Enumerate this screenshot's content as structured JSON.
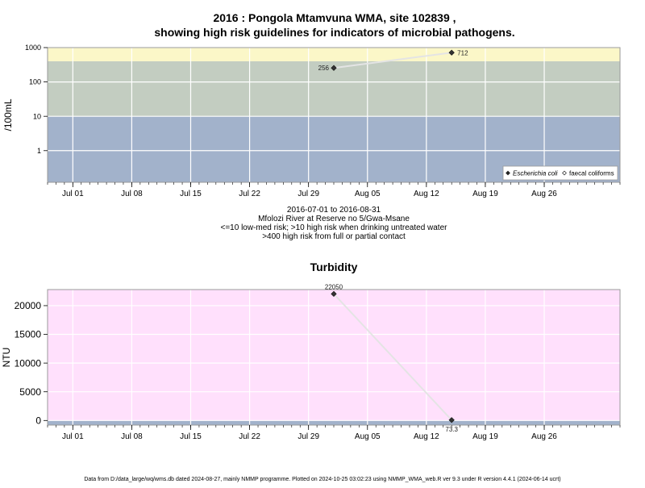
{
  "chart_data": [
    {
      "type": "scatter",
      "title_line1": "2016 : Pongola Mtamvuna WMA, site 102839 ,",
      "title_line2": "showing high risk guidelines for indicators of microbial pathogens.",
      "ylabel": "/100mL",
      "yscale": "log",
      "ylim": [
        0.12,
        1000
      ],
      "xlim": [
        "2016-06-28",
        "2016-09-04"
      ],
      "y_ticks": [
        1,
        10,
        100,
        1000
      ],
      "y_tick_labels": [
        "1",
        "10",
        "100",
        "1000"
      ],
      "x_ticks": [
        "2016-07-01",
        "2016-07-08",
        "2016-07-15",
        "2016-07-22",
        "2016-07-29",
        "2016-08-05",
        "2016-08-12",
        "2016-08-19",
        "2016-08-26"
      ],
      "x_tick_labels": [
        "Jul 01",
        "Jul 08",
        "Jul 15",
        "Jul 22",
        "Jul 29",
        "Aug 05",
        "Aug 12",
        "Aug 19",
        "Aug 26"
      ],
      "bands": [
        {
          "from": 0.12,
          "to": 10,
          "color": "#a2b2cb"
        },
        {
          "from": 10,
          "to": 400,
          "color": "#c3cdc1"
        },
        {
          "from": 400,
          "to": 1000,
          "color": "#fbf7c8"
        }
      ],
      "series": [
        {
          "name": "Escherichia coli",
          "marker": "filled-diamond",
          "x": [
            "2016-08-01",
            "2016-08-15"
          ],
          "y": [
            256,
            712
          ],
          "labels": [
            "256",
            "712"
          ]
        }
      ],
      "legend": {
        "position": "bottom-right",
        "entries": [
          {
            "label": "Escherichia coli",
            "marker": "filled-diamond",
            "italic": true
          },
          {
            "label": "faecal coliforms",
            "marker": "open-diamond",
            "italic": false
          }
        ]
      },
      "grid": true,
      "caption_lines": [
        "2016-07-01 to 2016-08-31",
        "Mfolozi River at Reserve no 5/Gwa-Msane",
        "<=10 low-med risk; >10 high risk when drinking untreated water",
        ">400 high risk from full or partial contact"
      ]
    },
    {
      "type": "scatter",
      "title": "Turbidity",
      "ylabel": "NTU",
      "ylim": [
        -800,
        22800
      ],
      "xlim": [
        "2016-06-28",
        "2016-09-04"
      ],
      "y_ticks": [
        0,
        5000,
        10000,
        15000,
        20000
      ],
      "y_tick_labels": [
        "0",
        "5000",
        "10000",
        "15000",
        "20000"
      ],
      "x_ticks": [
        "2016-07-01",
        "2016-07-08",
        "2016-07-15",
        "2016-07-22",
        "2016-07-29",
        "2016-08-05",
        "2016-08-12",
        "2016-08-19",
        "2016-08-26"
      ],
      "x_tick_labels": [
        "Jul 01",
        "Jul 08",
        "Jul 15",
        "Jul 22",
        "Jul 29",
        "Aug 05",
        "Aug 12",
        "Aug 19",
        "Aug 26"
      ],
      "bands": [
        {
          "from": -800,
          "to": 0,
          "color": "#a2b2cb"
        },
        {
          "from": 0,
          "to": 22800,
          "color": "#ffe0fc"
        }
      ],
      "series": [
        {
          "marker": "filled-diamond",
          "x": [
            "2016-08-01",
            "2016-08-15"
          ],
          "y": [
            22050,
            73.3
          ],
          "labels": [
            "22050",
            "73.3"
          ]
        }
      ],
      "grid": true
    }
  ],
  "footer": "Data from D:/data_large/wq/wms.db dated 2024-08-27, mainly NMMP programme. Plotted on 2024-10-25 03:02:23 using NMMP_WMA_web.R ver 9.3 under R version 4.4.1 (2024-06-14 ucrt)"
}
